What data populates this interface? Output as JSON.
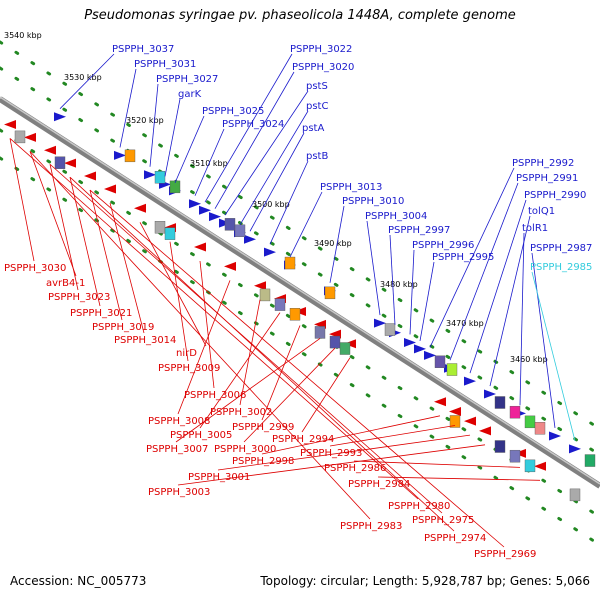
{
  "title": "Pseudomonas syringae pv. phaseolicola 1448A, complete genome",
  "footer": {
    "accession": "Accession: NC_005773",
    "info": "Topology: circular; Length: 5,928,787 bp; Genes: 5,066"
  },
  "colors": {
    "forward": "#1a1acc",
    "reverse": "#dd0000",
    "highlight": "#33ccdd",
    "backbone": "#808080",
    "dots": "#228822"
  },
  "ticks": [
    "3540 kbp",
    "3530 kbp",
    "3520 kbp",
    "3510 kbp",
    "3500 kbp",
    "3490 kbp",
    "3480 kbp",
    "3470 kbp",
    "3460 kbp"
  ],
  "forward_labels": [
    "PSPPH_3037",
    "PSPPH_3031",
    "PSPPH_3027",
    "garK",
    "PSPPH_3025",
    "PSPPH_3024",
    "PSPPH_3022",
    "PSPPH_3020",
    "pstS",
    "pstC",
    "pstA",
    "pstB",
    "PSPPH_3013",
    "PSPPH_3010",
    "PSPPH_3004",
    "PSPPH_2997",
    "PSPPH_2996",
    "PSPPH_2995",
    "PSPPH_2992",
    "PSPPH_2991",
    "PSPPH_2990",
    "tolQ1",
    "tolR1",
    "PSPPH_2987",
    "PSPPH_2985"
  ],
  "reverse_labels": [
    "PSPPH_3030",
    "avrB4-1",
    "PSPPH_3023",
    "PSPPH_3021",
    "PSPPH_3019",
    "PSPPH_3014",
    "nirD",
    "PSPPH_3009",
    "PSPPH_3006",
    "PSPPH_3008",
    "PSPPH_3002",
    "PSPPH_3005",
    "PSPPH_2999",
    "PSPPH_3007",
    "PSPPH_3000",
    "PSPPH_2994",
    "PSPPH_2998",
    "PSPPH_2993",
    "PSPPH_3001",
    "PSPPH_3003",
    "PSPPH_2986",
    "PSPPH_2984",
    "PSPPH_2980",
    "PSPPH_2983",
    "PSPPH_2975",
    "PSPPH_2974",
    "PSPPH_2969"
  ]
}
